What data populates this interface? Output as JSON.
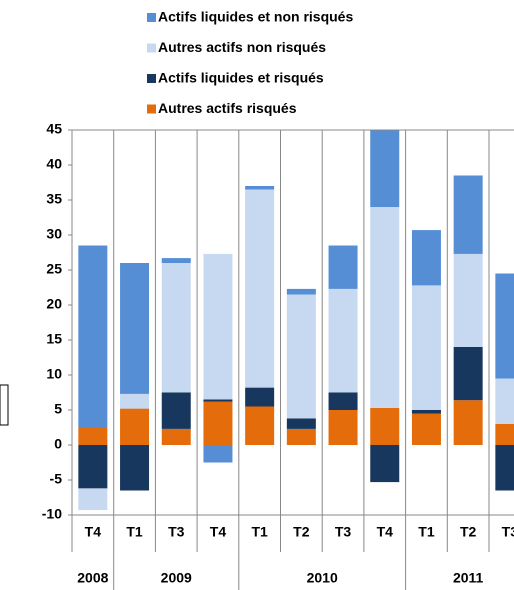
{
  "chart_data": {
    "type": "stacked_bar",
    "groups": [
      {
        "label": "2008",
        "categories": [
          "T4"
        ]
      },
      {
        "label": "2009",
        "categories": [
          "T1",
          "T3",
          "T4"
        ]
      },
      {
        "label": "2010",
        "categories": [
          "T1",
          "T2",
          "T3",
          "T4"
        ]
      },
      {
        "label": "2011",
        "categories": [
          "T1",
          "T2",
          "T3"
        ]
      }
    ],
    "series": [
      {
        "name": "Actifs liquides et non risqués",
        "color": "#558ED5",
        "values": [
          26,
          18.7,
          0.7,
          -2.5,
          0.5,
          0.8,
          6.2,
          11,
          7.9,
          11.2,
          15
        ]
      },
      {
        "name": "Autres actifs non risqués",
        "color": "#C6D9F1",
        "values": [
          -3.1,
          2.1,
          18.5,
          20.8,
          28.3,
          17.7,
          14.8,
          28.7,
          17.8,
          13.3,
          6.5
        ]
      },
      {
        "name": "Actifs liquides et risqués",
        "color": "#17375E",
        "values": [
          -6.2,
          -6.5,
          5.2,
          0.3,
          2.7,
          1.5,
          2.5,
          -5.3,
          0.5,
          7.6,
          -6.5
        ]
      },
      {
        "name": "Autres actifs risqués",
        "color": "#E46C0A",
        "values": [
          2.5,
          5.2,
          2.3,
          6.2,
          5.5,
          2.3,
          5,
          5.3,
          4.5,
          6.4,
          3
        ]
      }
    ],
    "ylim": [
      -10,
      45
    ],
    "yticks": [
      -10,
      -5,
      0,
      5,
      10,
      15,
      20,
      25,
      30,
      35,
      40,
      45
    ]
  }
}
